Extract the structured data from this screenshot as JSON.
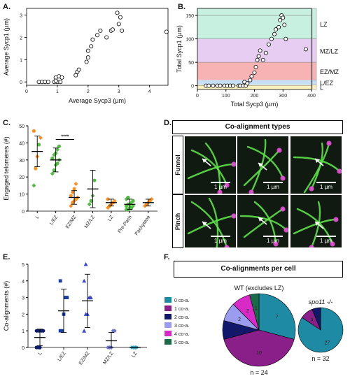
{
  "panels": {
    "A": {
      "label": "A."
    },
    "B": {
      "label": "B."
    },
    "C": {
      "label": "C."
    },
    "D": {
      "label": "D."
    },
    "E": {
      "label": "E."
    },
    "F": {
      "label": "F."
    }
  },
  "chart_data": [
    {
      "id": "A",
      "type": "scatter",
      "xlabel": "Average Sycp3 (µm)",
      "ylabel": "Average Sycp1 (µm)",
      "xlim": [
        0,
        4.6
      ],
      "ylim": [
        -0.15,
        3.3
      ],
      "xticks": [
        0,
        1,
        2,
        3,
        4
      ],
      "yticks": [
        0,
        1,
        2,
        3
      ],
      "points": [
        [
          0.4,
          0
        ],
        [
          0.5,
          0
        ],
        [
          0.6,
          0
        ],
        [
          0.7,
          0
        ],
        [
          0.9,
          0
        ],
        [
          1.0,
          0
        ],
        [
          1.1,
          0
        ],
        [
          0.95,
          0.2
        ],
        [
          1.05,
          0.25
        ],
        [
          1.15,
          0.2
        ],
        [
          0.95,
          0.05
        ],
        [
          1.6,
          0.3
        ],
        [
          1.65,
          0.45
        ],
        [
          1.7,
          0.55
        ],
        [
          1.95,
          0.9
        ],
        [
          2.0,
          1.1
        ],
        [
          2.0,
          1.4
        ],
        [
          2.1,
          1.6
        ],
        [
          2.15,
          1.9
        ],
        [
          2.3,
          2.1
        ],
        [
          2.6,
          2.0
        ],
        [
          2.75,
          2.3
        ],
        [
          2.8,
          2.35
        ],
        [
          2.95,
          3.1
        ],
        [
          3.0,
          2.6
        ],
        [
          3.05,
          2.9
        ],
        [
          3.1,
          2.3
        ],
        [
          2.4,
          2.3
        ],
        [
          4.55,
          2.25
        ]
      ]
    },
    {
      "id": "B",
      "type": "scatter",
      "xlabel": "Total Sycp3 (µm)",
      "ylabel": "Total Sycp1 (µm)",
      "xlim": [
        0,
        400
      ],
      "ylim": [
        -8,
        165
      ],
      "xticks": [
        0,
        100,
        200,
        300,
        400
      ],
      "yticks": [
        0,
        50,
        100,
        150
      ],
      "bands": [
        {
          "label": "LZ",
          "y0": 100,
          "y1": 165,
          "color": "#c8f0e0"
        },
        {
          "label": "MZ/LZ",
          "y0": 50,
          "y1": 100,
          "color": "#e8cdf2"
        },
        {
          "label": "EZ/MZ",
          "y0": 12,
          "y1": 50,
          "color": "#f7b3b3"
        },
        {
          "label": "L/EZ",
          "y0": 2,
          "y1": 12,
          "color": "#c7dff5"
        },
        {
          "label": "L",
          "y0": -8,
          "y1": 2,
          "color": "#fbf0c0"
        }
      ],
      "points": [
        [
          30,
          0
        ],
        [
          40,
          0
        ],
        [
          55,
          0
        ],
        [
          70,
          0
        ],
        [
          80,
          0
        ],
        [
          95,
          0
        ],
        [
          105,
          0
        ],
        [
          115,
          0
        ],
        [
          125,
          0
        ],
        [
          145,
          0
        ],
        [
          150,
          0
        ],
        [
          160,
          0
        ],
        [
          170,
          0
        ],
        [
          165,
          8
        ],
        [
          175,
          5
        ],
        [
          185,
          12
        ],
        [
          190,
          20
        ],
        [
          200,
          28
        ],
        [
          205,
          40
        ],
        [
          210,
          55
        ],
        [
          215,
          63
        ],
        [
          220,
          75
        ],
        [
          230,
          55
        ],
        [
          240,
          70
        ],
        [
          250,
          88
        ],
        [
          260,
          100
        ],
        [
          270,
          110
        ],
        [
          275,
          120
        ],
        [
          285,
          125
        ],
        [
          290,
          140
        ],
        [
          295,
          150
        ],
        [
          300,
          145
        ],
        [
          305,
          130
        ],
        [
          310,
          100
        ],
        [
          380,
          78
        ]
      ]
    },
    {
      "id": "C",
      "type": "scatter",
      "ylabel": "Engaged telomeres (#)",
      "ylim": [
        0,
        50
      ],
      "yticks": [
        0,
        10,
        20,
        30,
        40,
        50
      ],
      "categories": [
        "L",
        "L/EZ",
        "EZ/MZ",
        "MZ/LZ",
        "LZ",
        "Pre-Pach",
        "Pachytene"
      ],
      "significance": "****",
      "means": [
        35,
        30,
        8,
        13,
        5,
        4,
        5
      ],
      "sd": [
        9,
        7,
        4,
        11,
        2,
        3,
        2
      ],
      "points": [
        [
          15,
          25,
          32,
          39,
          43,
          47
        ],
        [
          22,
          24,
          27,
          28,
          30,
          31,
          33,
          34,
          36,
          38
        ],
        [
          3,
          5,
          6,
          7,
          8,
          9,
          11,
          13,
          16
        ],
        [
          4,
          6,
          9,
          18
        ],
        [
          2,
          3,
          4,
          5,
          6,
          7
        ],
        [
          1,
          1,
          2,
          2,
          3,
          3,
          4,
          4,
          5,
          6,
          7,
          8
        ],
        [
          3,
          4,
          5,
          6,
          7
        ]
      ],
      "colors": [
        "#f5922a",
        "#57b948"
      ]
    },
    {
      "id": "E",
      "type": "scatter",
      "ylabel": "Co-alignments (#)",
      "ylim": [
        0,
        5
      ],
      "yticks": [
        0,
        1,
        2,
        3,
        4,
        5
      ],
      "categories": [
        "L",
        "L/EZ",
        "EZ/MZ",
        "MZ/LZ",
        "LZ"
      ],
      "means": [
        0.6,
        2.2,
        2.8,
        0.4,
        0
      ],
      "sd": [
        0.5,
        1.3,
        1.6,
        0.5,
        0
      ],
      "points": [
        [
          0,
          0,
          0,
          1,
          1,
          1,
          1,
          1
        ],
        [
          1,
          1,
          2,
          3,
          3,
          4
        ],
        [
          1,
          2,
          2,
          3,
          3,
          4,
          5
        ],
        [
          0,
          0,
          0,
          1,
          1
        ],
        [
          0,
          0,
          0,
          0
        ]
      ],
      "colors": [
        "#0d1b6b",
        "#1a3ea0",
        "#3a48c8",
        "#6c74c8",
        "#3fa6c6"
      ]
    },
    {
      "id": "F",
      "type": "pie",
      "title": "Co-alignments per cell",
      "legend": [
        "0 co-a.",
        "1 co-a.",
        "2 co-a.",
        "3 co-a.",
        "4 co-a.",
        "5 co-a."
      ],
      "colors": [
        "#1f8aa4",
        "#8a1f8a",
        "#11186b",
        "#9b9cf0",
        "#d82ac6",
        "#1d6a4a"
      ],
      "pies": [
        {
          "name": "WT (excludes LZ)",
          "n": "n = 24",
          "values": [
            7,
            10,
            2,
            2,
            2,
            1
          ]
        },
        {
          "name": "spo11 -/-",
          "n": "n = 32",
          "values": [
            27,
            3,
            2,
            0,
            0,
            0
          ]
        }
      ]
    }
  ],
  "D": {
    "title": "Co-alignment types",
    "rows": [
      "Funnel",
      "Pinch"
    ],
    "scalebar": "1 µm"
  }
}
